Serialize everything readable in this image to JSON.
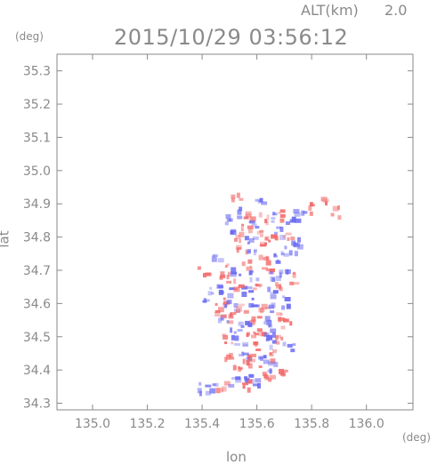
{
  "header": {
    "alt_label": "ALT(km)",
    "alt_value": "2.0",
    "timestamp": "2015/10/29 03:56:12"
  },
  "chart_data": {
    "type": "heatmap",
    "title": "2015/10/29 03:56:12",
    "xlabel": "lon",
    "ylabel": "lat",
    "x_unit": "(deg)",
    "y_unit": "(deg)",
    "xlim": [
      134.87,
      136.17
    ],
    "ylim": [
      34.28,
      35.35
    ],
    "x_ticks": [
      135.0,
      135.2,
      135.4,
      135.6,
      135.8,
      136.0
    ],
    "x_tick_labels": [
      "135.0",
      "135.2",
      "135.4",
      "135.6",
      "135.8",
      "136.0"
    ],
    "y_ticks": [
      34.3,
      34.4,
      34.5,
      34.6,
      34.7,
      34.8,
      34.9,
      35.0,
      35.1,
      35.2,
      35.3
    ],
    "y_tick_labels": [
      "34.3",
      "34.4",
      "34.5",
      "34.6",
      "34.7",
      "34.8",
      "34.9",
      "35.0",
      "35.1",
      "35.2",
      "35.3"
    ],
    "grid": false,
    "colors": {
      "positive": "#f26a6a",
      "negative": "#6a6af2",
      "axis": "#8a8a8a"
    },
    "cells": [
      [
        135.52,
        34.92,
        1
      ],
      [
        135.54,
        34.88,
        -1
      ],
      [
        135.5,
        34.86,
        -1
      ],
      [
        135.56,
        34.87,
        1
      ],
      [
        135.6,
        34.91,
        -1
      ],
      [
        135.62,
        34.86,
        1
      ],
      [
        135.66,
        34.86,
        -1
      ],
      [
        135.69,
        34.87,
        1
      ],
      [
        135.72,
        34.86,
        -1
      ],
      [
        135.75,
        34.88,
        -1
      ],
      [
        135.8,
        34.89,
        1
      ],
      [
        135.85,
        34.91,
        1
      ],
      [
        135.88,
        34.88,
        1
      ],
      [
        135.53,
        34.81,
        1
      ],
      [
        135.57,
        34.8,
        -1
      ],
      [
        135.61,
        34.81,
        1
      ],
      [
        135.63,
        34.79,
        1
      ],
      [
        135.68,
        34.82,
        -1
      ],
      [
        135.71,
        34.8,
        1
      ],
      [
        135.74,
        34.79,
        -1
      ],
      [
        135.69,
        34.76,
        -1
      ],
      [
        135.73,
        34.77,
        -1
      ],
      [
        135.66,
        34.8,
        1
      ],
      [
        135.59,
        34.84,
        -1
      ],
      [
        135.55,
        34.84,
        1
      ],
      [
        135.51,
        34.83,
        -1
      ],
      [
        135.45,
        34.74,
        -1
      ],
      [
        135.48,
        34.71,
        1
      ],
      [
        135.4,
        34.7,
        1
      ],
      [
        135.52,
        34.7,
        -1
      ],
      [
        135.56,
        34.72,
        1
      ],
      [
        135.59,
        34.69,
        -1
      ],
      [
        135.63,
        34.71,
        1
      ],
      [
        135.66,
        34.69,
        -1
      ],
      [
        135.69,
        34.7,
        -1
      ],
      [
        135.72,
        34.68,
        1
      ],
      [
        135.68,
        34.65,
        1
      ],
      [
        135.64,
        34.64,
        -1
      ],
      [
        135.6,
        34.66,
        1
      ],
      [
        135.56,
        34.64,
        -1
      ],
      [
        135.52,
        34.66,
        1
      ],
      [
        135.48,
        34.64,
        -1
      ],
      [
        135.44,
        34.65,
        -1
      ],
      [
        135.46,
        34.61,
        1
      ],
      [
        135.5,
        34.6,
        -1
      ],
      [
        135.54,
        34.59,
        1
      ],
      [
        135.58,
        34.61,
        -1
      ],
      [
        135.62,
        34.6,
        1
      ],
      [
        135.66,
        34.59,
        -1
      ],
      [
        135.7,
        34.61,
        -1
      ],
      [
        135.67,
        34.56,
        1
      ],
      [
        135.63,
        34.55,
        -1
      ],
      [
        135.59,
        34.56,
        1
      ],
      [
        135.55,
        34.55,
        -1
      ],
      [
        135.51,
        34.56,
        1
      ],
      [
        135.47,
        34.55,
        -1
      ],
      [
        135.49,
        34.5,
        1
      ],
      [
        135.53,
        34.49,
        -1
      ],
      [
        135.57,
        34.5,
        1
      ],
      [
        135.61,
        34.51,
        1
      ],
      [
        135.65,
        34.49,
        -1
      ],
      [
        135.68,
        34.5,
        1
      ],
      [
        135.71,
        34.48,
        -1
      ],
      [
        135.66,
        34.45,
        1
      ],
      [
        135.62,
        34.44,
        -1
      ],
      [
        135.58,
        34.45,
        1
      ],
      [
        135.54,
        34.44,
        -1
      ],
      [
        135.5,
        34.45,
        1
      ],
      [
        135.53,
        34.4,
        1
      ],
      [
        135.57,
        34.39,
        -1
      ],
      [
        135.61,
        34.4,
        1
      ],
      [
        135.65,
        34.41,
        -1
      ],
      [
        135.68,
        34.39,
        1
      ],
      [
        135.63,
        34.37,
        1
      ],
      [
        135.59,
        34.36,
        -1
      ],
      [
        135.55,
        34.36,
        1
      ],
      [
        135.51,
        34.37,
        -1
      ],
      [
        135.47,
        34.36,
        1
      ],
      [
        135.43,
        34.35,
        -1
      ],
      [
        135.4,
        34.35,
        -1
      ],
      [
        135.45,
        34.58,
        1
      ],
      [
        135.42,
        34.62,
        -1
      ],
      [
        135.47,
        34.68,
        1
      ],
      [
        135.58,
        34.75,
        -1
      ],
      [
        135.62,
        34.74,
        1
      ],
      [
        135.66,
        34.74,
        -1
      ],
      [
        135.54,
        34.76,
        1
      ],
      [
        135.7,
        34.54,
        1
      ],
      [
        135.52,
        34.52,
        -1
      ],
      [
        135.6,
        34.47,
        1
      ],
      [
        135.64,
        34.52,
        -1
      ],
      [
        135.56,
        34.42,
        1
      ]
    ]
  }
}
